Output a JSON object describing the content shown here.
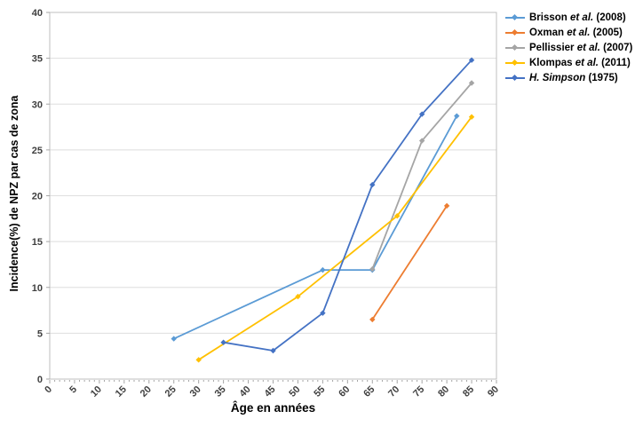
{
  "chart_data": {
    "type": "line",
    "title": "",
    "xlabel": "Âge en années",
    "ylabel": "Incidence(%) de NPZ par cas de zona",
    "xlim": [
      0,
      90
    ],
    "ylim": [
      0,
      40
    ],
    "xticks": [
      0,
      5,
      10,
      15,
      20,
      25,
      30,
      35,
      40,
      45,
      50,
      55,
      60,
      65,
      70,
      75,
      80,
      85,
      90
    ],
    "yticks": [
      0,
      5,
      10,
      15,
      20,
      25,
      30,
      35,
      40
    ],
    "grid": "horizontal-major",
    "legend_position": "top-right",
    "colors": {
      "axis": "#BFBFBF",
      "grid": "#DEDEDE",
      "tick": "#A6A6A6",
      "tick_label": "#3F3F3F"
    },
    "series": [
      {
        "key": "brisson-2008",
        "label_pre": "Brisson ",
        "label_italic": "et al.",
        "label_post": " (2008)",
        "color": "#5B9BD5",
        "points": [
          [
            25,
            4.4
          ],
          [
            55,
            11.9
          ],
          [
            65,
            11.9
          ],
          [
            82,
            28.7
          ]
        ]
      },
      {
        "key": "oxman-2005",
        "label_pre": "Oxman ",
        "label_italic": "et al.",
        "label_post": " (2005)",
        "color": "#ED7D31",
        "points": [
          [
            65,
            6.5
          ],
          [
            80,
            18.9
          ]
        ]
      },
      {
        "key": "pellissier-2007",
        "label_pre": "Pellissier ",
        "label_italic": "et al.",
        "label_post": " (2007)",
        "color": "#A5A5A5",
        "points": [
          [
            65,
            12.0
          ],
          [
            75,
            26.0
          ],
          [
            85,
            32.3
          ]
        ]
      },
      {
        "key": "klompas-2011",
        "label_pre": "Klompas ",
        "label_italic": "et al.",
        "label_post": " (2011)",
        "color": "#FFC000",
        "points": [
          [
            30,
            2.1
          ],
          [
            50,
            9.0
          ],
          [
            70,
            17.8
          ],
          [
            85,
            28.6
          ]
        ]
      },
      {
        "key": "simpson-1975",
        "label_pre": "",
        "label_italic": "H. Simpson",
        "label_post": " (1975)",
        "color": "#4472C4",
        "points": [
          [
            35,
            4.0
          ],
          [
            45,
            3.1
          ],
          [
            55,
            7.2
          ],
          [
            65,
            21.2
          ],
          [
            75,
            28.9
          ],
          [
            85,
            34.8
          ]
        ]
      }
    ]
  }
}
